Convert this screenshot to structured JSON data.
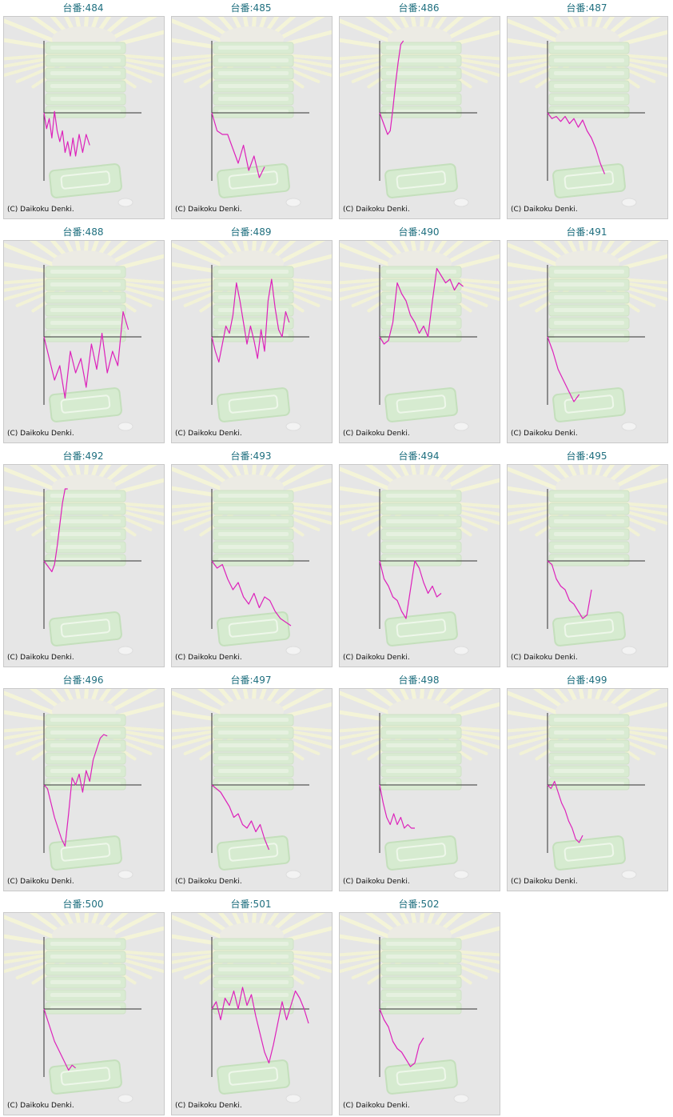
{
  "title_prefix": "台番:",
  "copyright": "(C) Daikoku Denki.",
  "line_color": "#dd22bb",
  "axis_color": "#333333",
  "chart_data": [
    {
      "type": "line",
      "title": "台番:484",
      "x": [
        0,
        3,
        6,
        9,
        12,
        15,
        18,
        21,
        24,
        27,
        30,
        33,
        36,
        40,
        44,
        48,
        52
      ],
      "values": [
        0,
        -0.22,
        -0.08,
        -0.35,
        0.02,
        -0.25,
        -0.4,
        -0.25,
        -0.55,
        -0.4,
        -0.6,
        -0.35,
        -0.6,
        -0.3,
        -0.55,
        -0.3,
        -0.45
      ]
    },
    {
      "type": "line",
      "title": "台番:485",
      "x": [
        0,
        6,
        12,
        18,
        24,
        30,
        36,
        42,
        48,
        54,
        60
      ],
      "values": [
        0,
        -0.25,
        -0.3,
        -0.3,
        -0.5,
        -0.7,
        -0.45,
        -0.8,
        -0.6,
        -0.9,
        -0.75
      ]
    },
    {
      "type": "line",
      "title": "台番:486",
      "x": [
        0,
        3,
        6,
        9,
        12,
        15,
        18,
        21,
        24,
        27
      ],
      "values": [
        0,
        -0.1,
        -0.2,
        -0.3,
        -0.25,
        0.05,
        0.4,
        0.7,
        0.95,
        1.0
      ]
    },
    {
      "type": "line",
      "title": "台番:487",
      "x": [
        0,
        5,
        10,
        15,
        20,
        25,
        30,
        35,
        40,
        45,
        50,
        55,
        60,
        65
      ],
      "values": [
        0,
        -0.08,
        -0.05,
        -0.12,
        -0.05,
        -0.15,
        -0.08,
        -0.2,
        -0.1,
        -0.25,
        -0.35,
        -0.5,
        -0.7,
        -0.85
      ]
    },
    {
      "type": "line",
      "title": "台番:488",
      "x": [
        0,
        6,
        12,
        18,
        24,
        30,
        36,
        42,
        48,
        54,
        60,
        66,
        72,
        78,
        84,
        90,
        96
      ],
      "values": [
        0,
        -0.3,
        -0.6,
        -0.4,
        -0.85,
        -0.2,
        -0.5,
        -0.3,
        -0.7,
        -0.1,
        -0.45,
        0.05,
        -0.5,
        -0.2,
        -0.4,
        0.35,
        0.1
      ]
    },
    {
      "type": "line",
      "title": "台番:489",
      "x": [
        0,
        4,
        8,
        12,
        16,
        20,
        24,
        28,
        32,
        36,
        40,
        44,
        48,
        52,
        56,
        60,
        64,
        68,
        72,
        76,
        80,
        84,
        88
      ],
      "values": [
        0,
        -0.2,
        -0.35,
        -0.1,
        0.15,
        0.05,
        0.3,
        0.75,
        0.5,
        0.2,
        -0.1,
        0.15,
        -0.05,
        -0.3,
        0.1,
        -0.2,
        0.5,
        0.8,
        0.4,
        0.1,
        0.0,
        0.35,
        0.2
      ]
    },
    {
      "type": "line",
      "title": "台番:490",
      "x": [
        0,
        5,
        10,
        15,
        20,
        25,
        30,
        35,
        40,
        45,
        50,
        55,
        60,
        65,
        70,
        75,
        80,
        85,
        90,
        95
      ],
      "values": [
        0,
        -0.1,
        -0.05,
        0.2,
        0.75,
        0.6,
        0.5,
        0.3,
        0.2,
        0.05,
        0.15,
        0.0,
        0.5,
        0.95,
        0.85,
        0.75,
        0.8,
        0.65,
        0.75,
        0.7
      ]
    },
    {
      "type": "line",
      "title": "台番:491",
      "x": [
        0,
        6,
        12,
        18,
        24,
        30,
        36
      ],
      "values": [
        0,
        -0.2,
        -0.45,
        -0.6,
        -0.75,
        -0.9,
        -0.8
      ]
    },
    {
      "type": "line",
      "title": "台番:492",
      "x": [
        0,
        3,
        6,
        9,
        12,
        15,
        18,
        21,
        24,
        27
      ],
      "values": [
        0,
        -0.05,
        -0.1,
        -0.15,
        -0.05,
        0.2,
        0.5,
        0.8,
        1.0,
        1.05
      ]
    },
    {
      "type": "line",
      "title": "台番:493",
      "x": [
        0,
        6,
        12,
        18,
        24,
        30,
        36,
        42,
        48,
        54,
        60,
        66,
        72,
        78,
        84,
        90
      ],
      "values": [
        0,
        -0.1,
        -0.05,
        -0.25,
        -0.4,
        -0.3,
        -0.5,
        -0.6,
        -0.45,
        -0.65,
        -0.5,
        -0.55,
        -0.7,
        -0.8,
        -0.85,
        -0.9
      ]
    },
    {
      "type": "line",
      "title": "台番:494",
      "x": [
        0,
        5,
        10,
        15,
        20,
        25,
        30,
        35,
        40,
        45,
        50,
        55,
        60,
        65,
        70
      ],
      "values": [
        0,
        -0.25,
        -0.35,
        -0.5,
        -0.55,
        -0.7,
        -0.8,
        -0.4,
        0.0,
        -0.1,
        -0.3,
        -0.45,
        -0.35,
        -0.5,
        -0.45
      ]
    },
    {
      "type": "line",
      "title": "台番:495",
      "x": [
        0,
        5,
        10,
        15,
        20,
        25,
        30,
        35,
        40,
        45,
        50
      ],
      "values": [
        0,
        -0.05,
        -0.25,
        -0.35,
        -0.4,
        -0.55,
        -0.6,
        -0.7,
        -0.8,
        -0.75,
        -0.4
      ]
    },
    {
      "type": "line",
      "title": "台番:496",
      "x": [
        0,
        4,
        8,
        12,
        16,
        20,
        24,
        28,
        32,
        36,
        40,
        44,
        48,
        52,
        56,
        60,
        64,
        68,
        72
      ],
      "values": [
        0,
        -0.05,
        -0.25,
        -0.45,
        -0.6,
        -0.75,
        -0.85,
        -0.4,
        0.1,
        0.0,
        0.15,
        -0.1,
        0.2,
        0.05,
        0.35,
        0.5,
        0.65,
        0.7,
        0.68
      ]
    },
    {
      "type": "line",
      "title": "台番:497",
      "x": [
        0,
        5,
        10,
        15,
        20,
        25,
        30,
        35,
        40,
        45,
        50,
        55,
        60,
        65
      ],
      "values": [
        0,
        -0.05,
        -0.1,
        -0.2,
        -0.3,
        -0.45,
        -0.4,
        -0.55,
        -0.6,
        -0.5,
        -0.65,
        -0.55,
        -0.75,
        -0.9
      ]
    },
    {
      "type": "line",
      "title": "台番:498",
      "x": [
        0,
        4,
        8,
        12,
        16,
        20,
        24,
        28,
        32,
        36,
        40
      ],
      "values": [
        0,
        -0.25,
        -0.45,
        -0.55,
        -0.4,
        -0.55,
        -0.45,
        -0.6,
        -0.55,
        -0.6,
        -0.6
      ]
    },
    {
      "type": "line",
      "title": "台番:499",
      "x": [
        0,
        4,
        8,
        12,
        16,
        20,
        24,
        28,
        32,
        36,
        40
      ],
      "values": [
        0,
        -0.05,
        0.05,
        -0.1,
        -0.25,
        -0.35,
        -0.5,
        -0.6,
        -0.75,
        -0.8,
        -0.7
      ]
    },
    {
      "type": "line",
      "title": "台番:500",
      "x": [
        0,
        4,
        8,
        12,
        16,
        20,
        24,
        28,
        32,
        36
      ],
      "values": [
        0,
        -0.15,
        -0.3,
        -0.45,
        -0.55,
        -0.65,
        -0.75,
        -0.85,
        -0.78,
        -0.82
      ]
    },
    {
      "type": "line",
      "title": "台番:501",
      "x": [
        0,
        5,
        10,
        15,
        20,
        25,
        30,
        35,
        40,
        45,
        50,
        55,
        60,
        65,
        70,
        75,
        80,
        85,
        90,
        95,
        100,
        105,
        110
      ],
      "values": [
        0,
        0.1,
        -0.15,
        0.15,
        0.05,
        0.25,
        0.0,
        0.3,
        0.05,
        0.2,
        -0.1,
        -0.35,
        -0.6,
        -0.75,
        -0.5,
        -0.2,
        0.1,
        -0.15,
        0.05,
        0.25,
        0.15,
        0.0,
        -0.2
      ]
    },
    {
      "type": "line",
      "title": "台番:502",
      "x": [
        0,
        5,
        10,
        15,
        20,
        25,
        30,
        35,
        40,
        45,
        50
      ],
      "values": [
        0,
        -0.15,
        -0.25,
        -0.45,
        -0.55,
        -0.6,
        -0.7,
        -0.8,
        -0.75,
        -0.5,
        -0.4
      ]
    }
  ]
}
